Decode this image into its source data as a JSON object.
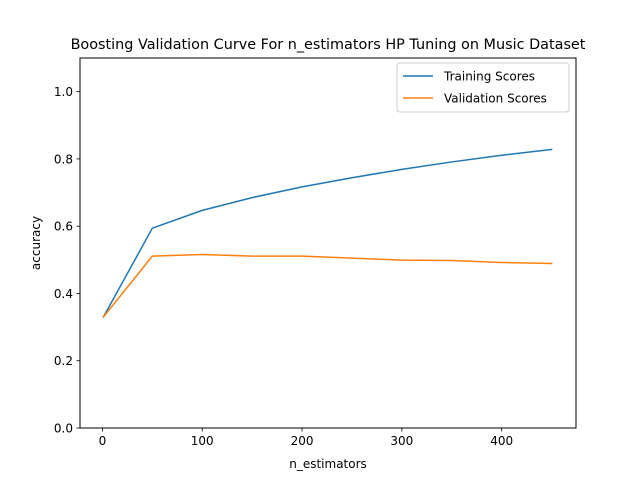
{
  "chart_data": {
    "type": "line",
    "title": "Boosting Validation Curve For n_estimators HP Tuning on Music Dataset",
    "xlabel": "n_estimators",
    "ylabel": "accuracy",
    "x": [
      1,
      50,
      100,
      150,
      200,
      250,
      300,
      350,
      400,
      450
    ],
    "series": [
      {
        "name": "Training Scores",
        "color": "#1f77b4",
        "values": [
          0.33,
          0.594,
          0.647,
          0.685,
          0.717,
          0.744,
          0.769,
          0.791,
          0.811,
          0.828
        ]
      },
      {
        "name": "Validation Scores",
        "color": "#ff7f0e",
        "values": [
          0.33,
          0.511,
          0.516,
          0.511,
          0.511,
          0.505,
          0.499,
          0.498,
          0.492,
          0.489
        ]
      }
    ],
    "xlim": [
      -22.45,
      474.45
    ],
    "ylim": [
      0.0,
      1.1
    ],
    "xticks": [
      0,
      100,
      200,
      300,
      400
    ],
    "xtick_labels": [
      "0",
      "100",
      "200",
      "300",
      "400"
    ],
    "yticks": [
      0.0,
      0.2,
      0.4,
      0.6,
      0.8,
      1.0
    ],
    "ytick_labels": [
      "0.0",
      "0.2",
      "0.4",
      "0.6",
      "0.8",
      "1.0"
    ],
    "grid": false,
    "legend_position": "upper right"
  }
}
